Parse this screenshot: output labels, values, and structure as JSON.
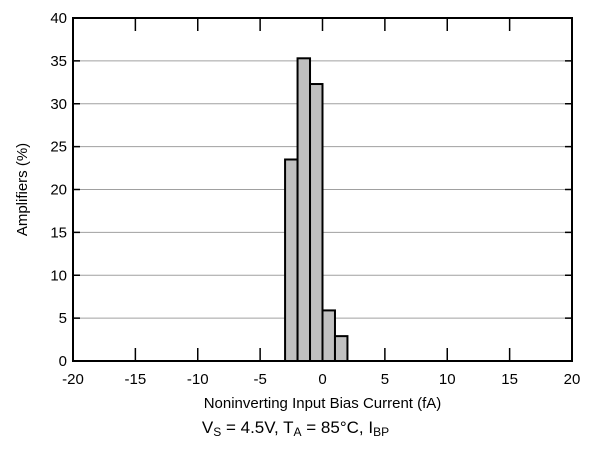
{
  "chart_data": {
    "type": "bar",
    "xlabel": "Noninverting Input Bias Current (fA)",
    "ylabel": "Amplifiers (%)",
    "xlim": [
      -20,
      20
    ],
    "ylim": [
      0,
      40
    ],
    "xticks": [
      -20,
      -15,
      -10,
      -5,
      0,
      5,
      10,
      15,
      20
    ],
    "yticks": [
      0,
      5,
      10,
      15,
      20,
      25,
      30,
      35,
      40
    ],
    "grid": "horizontal",
    "bin_width": 1,
    "bins": [
      {
        "x0": -3,
        "x1": -2,
        "value": 23.5
      },
      {
        "x0": -2,
        "x1": -1,
        "value": 35.3
      },
      {
        "x0": -1,
        "x1": 0,
        "value": 32.3
      },
      {
        "x0": 0,
        "x1": 1,
        "value": 5.9
      },
      {
        "x0": 1,
        "x1": 2,
        "value": 2.9
      }
    ],
    "bar_color": "#c0c0c0",
    "bar_edge_color": "#000000",
    "grid_color": "#a0a0a0"
  },
  "caption": {
    "v": "V",
    "v_sub": "S",
    "v_text": " = 4.5V, T",
    "t_sub": "A",
    "t_text": " = 85°C, I",
    "i_sub": "BP"
  }
}
